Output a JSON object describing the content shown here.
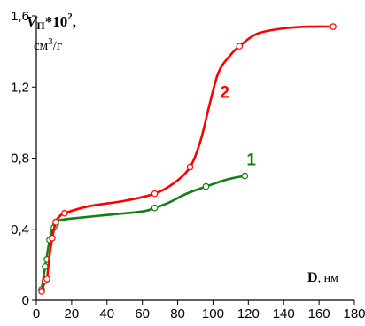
{
  "chart_data": {
    "type": "line",
    "ylabel": {
      "var": "V",
      "sub": "П",
      "mid": "*10",
      "sup": "2",
      "tail": ",",
      "unit_pre": "см",
      "unit_sup": "3",
      "unit_post": "/г"
    },
    "xlabel": {
      "var": "D",
      "unit": ", нм"
    },
    "xlim": [
      0,
      180
    ],
    "ylim": [
      0,
      1.6
    ],
    "xticks": [
      0,
      20,
      40,
      60,
      80,
      100,
      120,
      140,
      160,
      180
    ],
    "yticks": [
      {
        "value": 0,
        "label": "0"
      },
      {
        "value": 0.4,
        "label": "0,4"
      },
      {
        "value": 0.8,
        "label": "0,8"
      },
      {
        "value": 1.2,
        "label": "1,2"
      },
      {
        "value": 1.6,
        "label": "1,6"
      }
    ],
    "grid": false,
    "series": [
      {
        "name": "1",
        "color": "#118011",
        "points": [
          [
            3,
            0.06
          ],
          [
            5,
            0.19
          ],
          [
            6,
            0.23
          ],
          [
            7.5,
            0.34
          ],
          [
            10,
            0.41
          ],
          [
            11,
            0.43
          ],
          [
            67,
            0.52
          ],
          [
            96,
            0.64
          ],
          [
            118,
            0.7
          ]
        ],
        "curve": [
          [
            3,
            0.06
          ],
          [
            5,
            0.19
          ],
          [
            6,
            0.25
          ],
          [
            7.5,
            0.34
          ],
          [
            9,
            0.4
          ],
          [
            11,
            0.43
          ],
          [
            13,
            0.45
          ],
          [
            20,
            0.46
          ],
          [
            40,
            0.48
          ],
          [
            60,
            0.5
          ],
          [
            67,
            0.52
          ],
          [
            75,
            0.55
          ],
          [
            85,
            0.6
          ],
          [
            96,
            0.64
          ],
          [
            108,
            0.68
          ],
          [
            118,
            0.7
          ]
        ]
      },
      {
        "name": "2",
        "color": "#ff0000",
        "points": [
          [
            3,
            0.05
          ],
          [
            5,
            0.11
          ],
          [
            6,
            0.12
          ],
          [
            9,
            0.35
          ],
          [
            11,
            0.44
          ],
          [
            16,
            0.49
          ],
          [
            67,
            0.6
          ],
          [
            87,
            0.75
          ],
          [
            115,
            1.43
          ],
          [
            168,
            1.54
          ]
        ],
        "curve": [
          [
            3,
            0.05
          ],
          [
            5,
            0.11
          ],
          [
            6,
            0.12
          ],
          [
            7.5,
            0.25
          ],
          [
            9,
            0.35
          ],
          [
            11,
            0.44
          ],
          [
            13,
            0.47
          ],
          [
            16,
            0.49
          ],
          [
            30,
            0.53
          ],
          [
            50,
            0.56
          ],
          [
            67,
            0.6
          ],
          [
            78,
            0.66
          ],
          [
            87,
            0.75
          ],
          [
            93,
            0.9
          ],
          [
            98,
            1.1
          ],
          [
            103,
            1.28
          ],
          [
            109,
            1.37
          ],
          [
            115,
            1.43
          ],
          [
            125,
            1.5
          ],
          [
            140,
            1.53
          ],
          [
            155,
            1.54
          ],
          [
            168,
            1.54
          ]
        ]
      }
    ]
  }
}
